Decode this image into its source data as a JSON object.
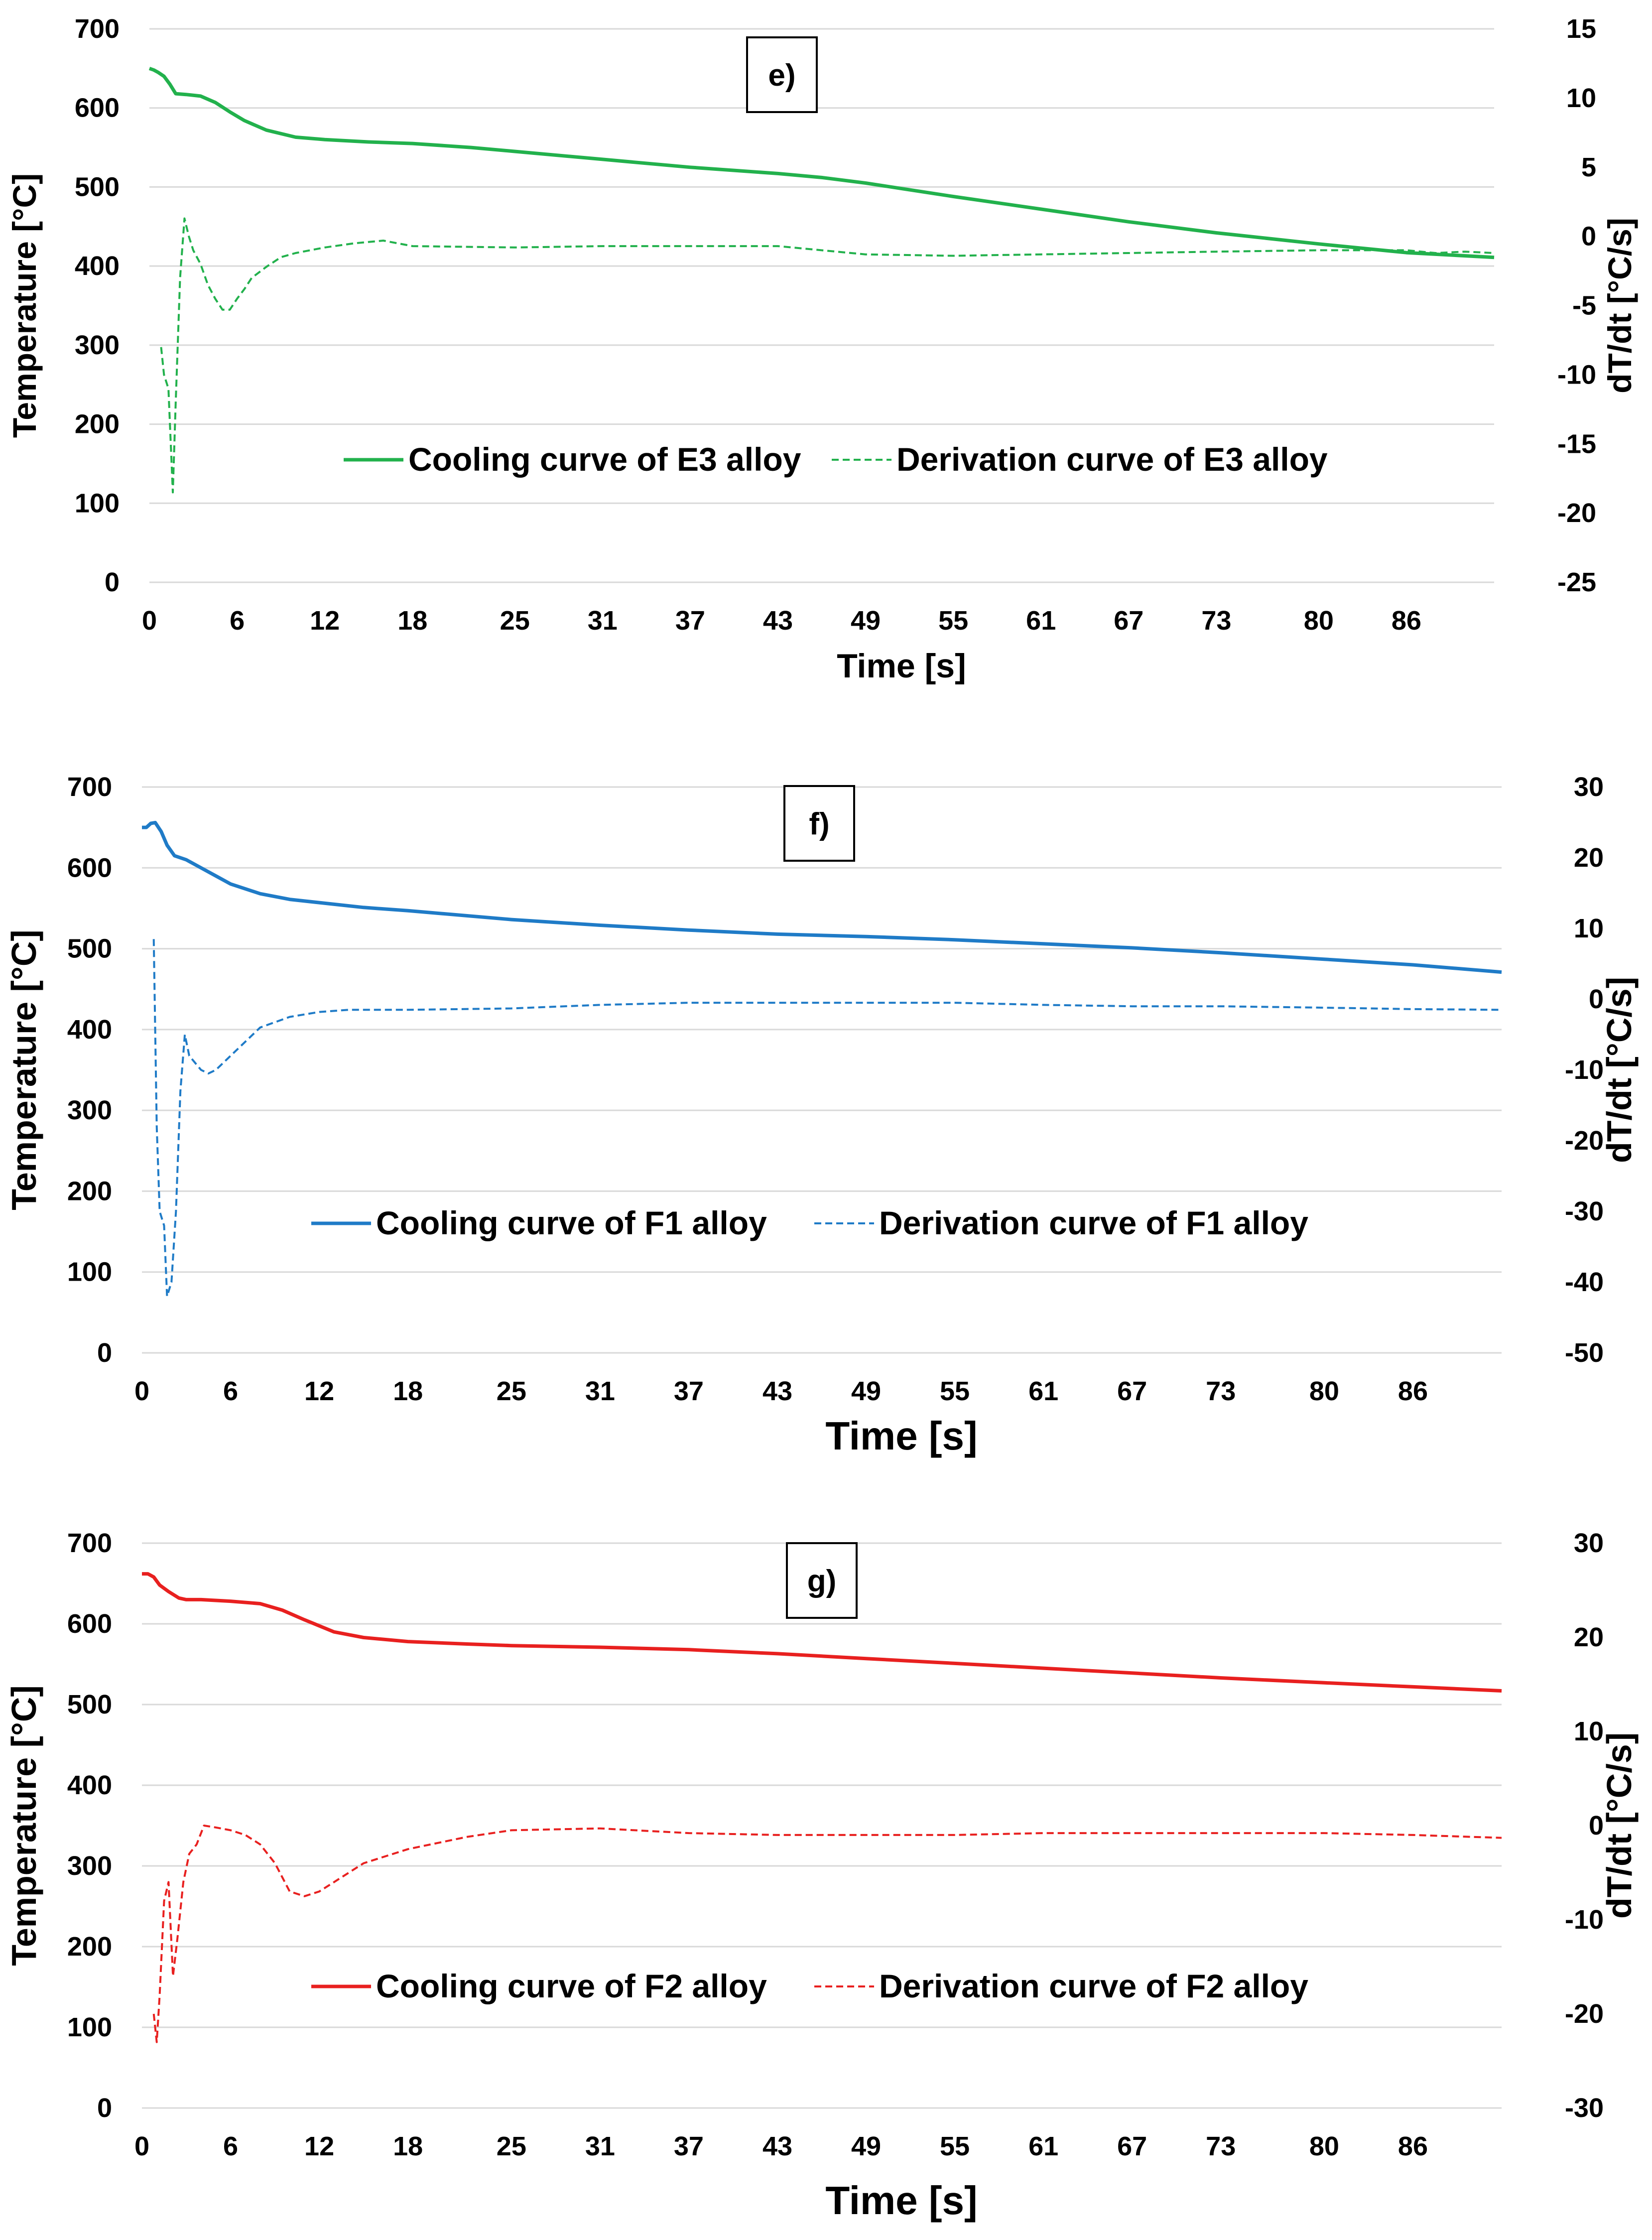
{
  "chart_data": [
    {
      "type": "line",
      "panel_label": "e)",
      "xlabel": "Time [s]",
      "ylabel": "Temperature [°C]",
      "y2label": "dT/dt [°C/s]",
      "x_tick_labels": [
        "0",
        "6",
        "12",
        "18",
        "25",
        "31",
        "37",
        "43",
        "49",
        "55",
        "61",
        "67",
        "73",
        "80",
        "86"
      ],
      "x_tick_values": [
        0,
        6,
        12,
        18,
        25,
        31,
        37,
        43,
        49,
        55,
        61,
        67,
        73,
        80,
        86
      ],
      "xlim": [
        0,
        92
      ],
      "ylim": [
        0,
        700
      ],
      "y_ticks": [
        0,
        100,
        200,
        300,
        400,
        500,
        600,
        700
      ],
      "y2lim": [
        -25,
        15
      ],
      "y2_ticks": [
        -25,
        -20,
        -15,
        -10,
        -5,
        0,
        5,
        10,
        15
      ],
      "grid": true,
      "legend_position": "center",
      "colors": {
        "cooling": "#22b14c",
        "derivation": "#22b14c"
      },
      "series": [
        {
          "name": "Cooling curve of E3 alloy",
          "axis": "left",
          "style": "solid",
          "x": [
            0,
            0.3,
            0.6,
            1.0,
            1.4,
            1.8,
            2.5,
            3.5,
            4.5,
            5.5,
            6.5,
            8,
            10,
            12,
            15,
            18,
            22,
            25,
            31,
            37,
            43,
            46,
            49,
            55,
            61,
            67,
            73,
            80,
            86,
            92
          ],
          "values": [
            650,
            648,
            645,
            640,
            630,
            618,
            617,
            615,
            607,
            595,
            584,
            572,
            563,
            560,
            557,
            555,
            550,
            545,
            535,
            525,
            517,
            512,
            505,
            488,
            472,
            456,
            442,
            428,
            417,
            411
          ]
        },
        {
          "name": "Derivation curve of E3 alloy",
          "axis": "right",
          "style": "dashed",
          "x": [
            0.8,
            1.0,
            1.3,
            1.6,
            1.8,
            2.1,
            2.4,
            2.7,
            3.0,
            3.5,
            4.0,
            4.5,
            5.0,
            5.5,
            6.0,
            6.5,
            7.0,
            8,
            9,
            10,
            11,
            12,
            14,
            16,
            18,
            25,
            31,
            37,
            43,
            49,
            55,
            61,
            67,
            73,
            80,
            86,
            88,
            90,
            92
          ],
          "values": [
            -8,
            -10,
            -11,
            -18.5,
            -12,
            -3,
            1.3,
            0,
            -1,
            -2,
            -3.5,
            -4.5,
            -5.3,
            -5.3,
            -4.5,
            -3.8,
            -3,
            -2.2,
            -1.5,
            -1.2,
            -1,
            -0.8,
            -0.5,
            -0.3,
            -0.7,
            -0.8,
            -0.7,
            -0.7,
            -0.7,
            -1.3,
            -1.4,
            -1.3,
            -1.2,
            -1.1,
            -1,
            -1,
            -1.2,
            -1.1,
            -1.2
          ]
        }
      ]
    },
    {
      "type": "line",
      "panel_label": "f)",
      "xlabel": "Time [s]",
      "ylabel": "Temperature [°C]",
      "y2label": "dT/dt [°C/s]",
      "x_tick_labels": [
        "0",
        "6",
        "12",
        "18",
        "25",
        "31",
        "37",
        "43",
        "49",
        "55",
        "61",
        "67",
        "73",
        "80",
        "86"
      ],
      "x_tick_values": [
        0,
        6,
        12,
        18,
        25,
        31,
        37,
        43,
        49,
        55,
        61,
        67,
        73,
        80,
        86
      ],
      "xlim": [
        0,
        92
      ],
      "ylim": [
        0,
        700
      ],
      "y_ticks": [
        0,
        100,
        200,
        300,
        400,
        500,
        600,
        700
      ],
      "y2lim": [
        -50,
        30
      ],
      "y2_ticks": [
        -50,
        -40,
        -30,
        -20,
        -10,
        0,
        10,
        20,
        30
      ],
      "grid": true,
      "legend_position": "center",
      "colors": {
        "cooling": "#1f7bc7",
        "derivation": "#1f7bc7"
      },
      "series": [
        {
          "name": "Cooling curve of F1 alloy",
          "axis": "left",
          "style": "solid",
          "x": [
            0,
            0.3,
            0.6,
            0.9,
            1.3,
            1.7,
            2.2,
            3,
            4,
            5,
            6,
            8,
            10,
            12,
            15,
            18,
            25,
            31,
            37,
            43,
            49,
            55,
            61,
            67,
            73,
            80,
            86,
            92
          ],
          "values": [
            650,
            650,
            655,
            656,
            645,
            628,
            615,
            610,
            600,
            590,
            580,
            568,
            561,
            557,
            551,
            547,
            536,
            529,
            523,
            518,
            515,
            511,
            506,
            501,
            495,
            487,
            480,
            471
          ]
        },
        {
          "name": "Derivation curve of F1 alloy",
          "axis": "right",
          "style": "dashed",
          "x": [
            0.8,
            1.0,
            1.2,
            1.5,
            1.7,
            2.0,
            2.3,
            2.6,
            2.9,
            3.2,
            3.6,
            4.0,
            4.5,
            5,
            6,
            7,
            8,
            10,
            12,
            14,
            18,
            25,
            31,
            37,
            43,
            49,
            55,
            61,
            67,
            73,
            80,
            86,
            92
          ],
          "values": [
            8.5,
            -18,
            -30,
            -32,
            -42,
            -40,
            -30,
            -13,
            -5,
            -8,
            -9,
            -10,
            -10.5,
            -10,
            -8,
            -6,
            -4,
            -2.5,
            -1.8,
            -1.5,
            -1.5,
            -1.3,
            -0.8,
            -0.5,
            -0.5,
            -0.5,
            -0.5,
            -0.8,
            -1,
            -1,
            -1.2,
            -1.4,
            -1.5
          ]
        }
      ]
    },
    {
      "type": "line",
      "panel_label": "g)",
      "xlabel": "Time [s]",
      "ylabel": "Temperature [°C]",
      "y2label": "dT/dt [°C/s]",
      "x_tick_labels": [
        "0",
        "6",
        "12",
        "18",
        "25",
        "31",
        "37",
        "43",
        "49",
        "55",
        "61",
        "67",
        "73",
        "80",
        "86"
      ],
      "x_tick_values": [
        0,
        6,
        12,
        18,
        25,
        31,
        37,
        43,
        49,
        55,
        61,
        67,
        73,
        80,
        86
      ],
      "xlim": [
        0,
        92
      ],
      "ylim": [
        0,
        700
      ],
      "y_ticks": [
        0,
        100,
        200,
        300,
        400,
        500,
        600,
        700
      ],
      "y2lim": [
        -30,
        30
      ],
      "y2_ticks": [
        -30,
        -20,
        -10,
        0,
        10,
        20,
        30
      ],
      "grid": true,
      "legend_position": "center",
      "colors": {
        "cooling": "#e8201f",
        "derivation": "#e8201f"
      },
      "series": [
        {
          "name": "Cooling curve of F2 alloy",
          "axis": "left",
          "style": "solid",
          "x": [
            0,
            0.4,
            0.8,
            1.2,
            1.8,
            2.5,
            3,
            4,
            6,
            8,
            9.5,
            11,
            13,
            15,
            18,
            22,
            25,
            31,
            37,
            43,
            49,
            55,
            61,
            67,
            73,
            80,
            86,
            92
          ],
          "values": [
            662,
            662,
            658,
            648,
            640,
            632,
            630,
            630,
            628,
            625,
            617,
            605,
            590,
            583,
            578,
            575,
            573,
            571,
            568,
            563,
            557,
            551,
            545,
            539,
            533,
            527,
            522,
            517
          ]
        },
        {
          "name": "Derivation curve of F2 alloy",
          "axis": "right",
          "style": "dashed",
          "x": [
            0.8,
            1.0,
            1.2,
            1.5,
            1.8,
            2.1,
            2.4,
            2.8,
            3.2,
            3.7,
            4.2,
            5,
            6,
            7,
            8,
            9,
            10,
            11,
            12,
            13,
            15,
            18,
            22,
            25,
            31,
            37,
            43,
            49,
            55,
            61,
            67,
            73,
            80,
            86,
            92
          ],
          "values": [
            -20,
            -23,
            -18,
            -8,
            -6,
            -16,
            -12,
            -6,
            -3,
            -2,
            0,
            -0.2,
            -0.5,
            -1,
            -2,
            -4,
            -7,
            -7.5,
            -7,
            -6,
            -4,
            -2.5,
            -1.2,
            -0.5,
            -0.3,
            -0.8,
            -1,
            -1,
            -1,
            -0.8,
            -0.8,
            -0.8,
            -0.8,
            -1,
            -1.3
          ]
        }
      ]
    }
  ]
}
